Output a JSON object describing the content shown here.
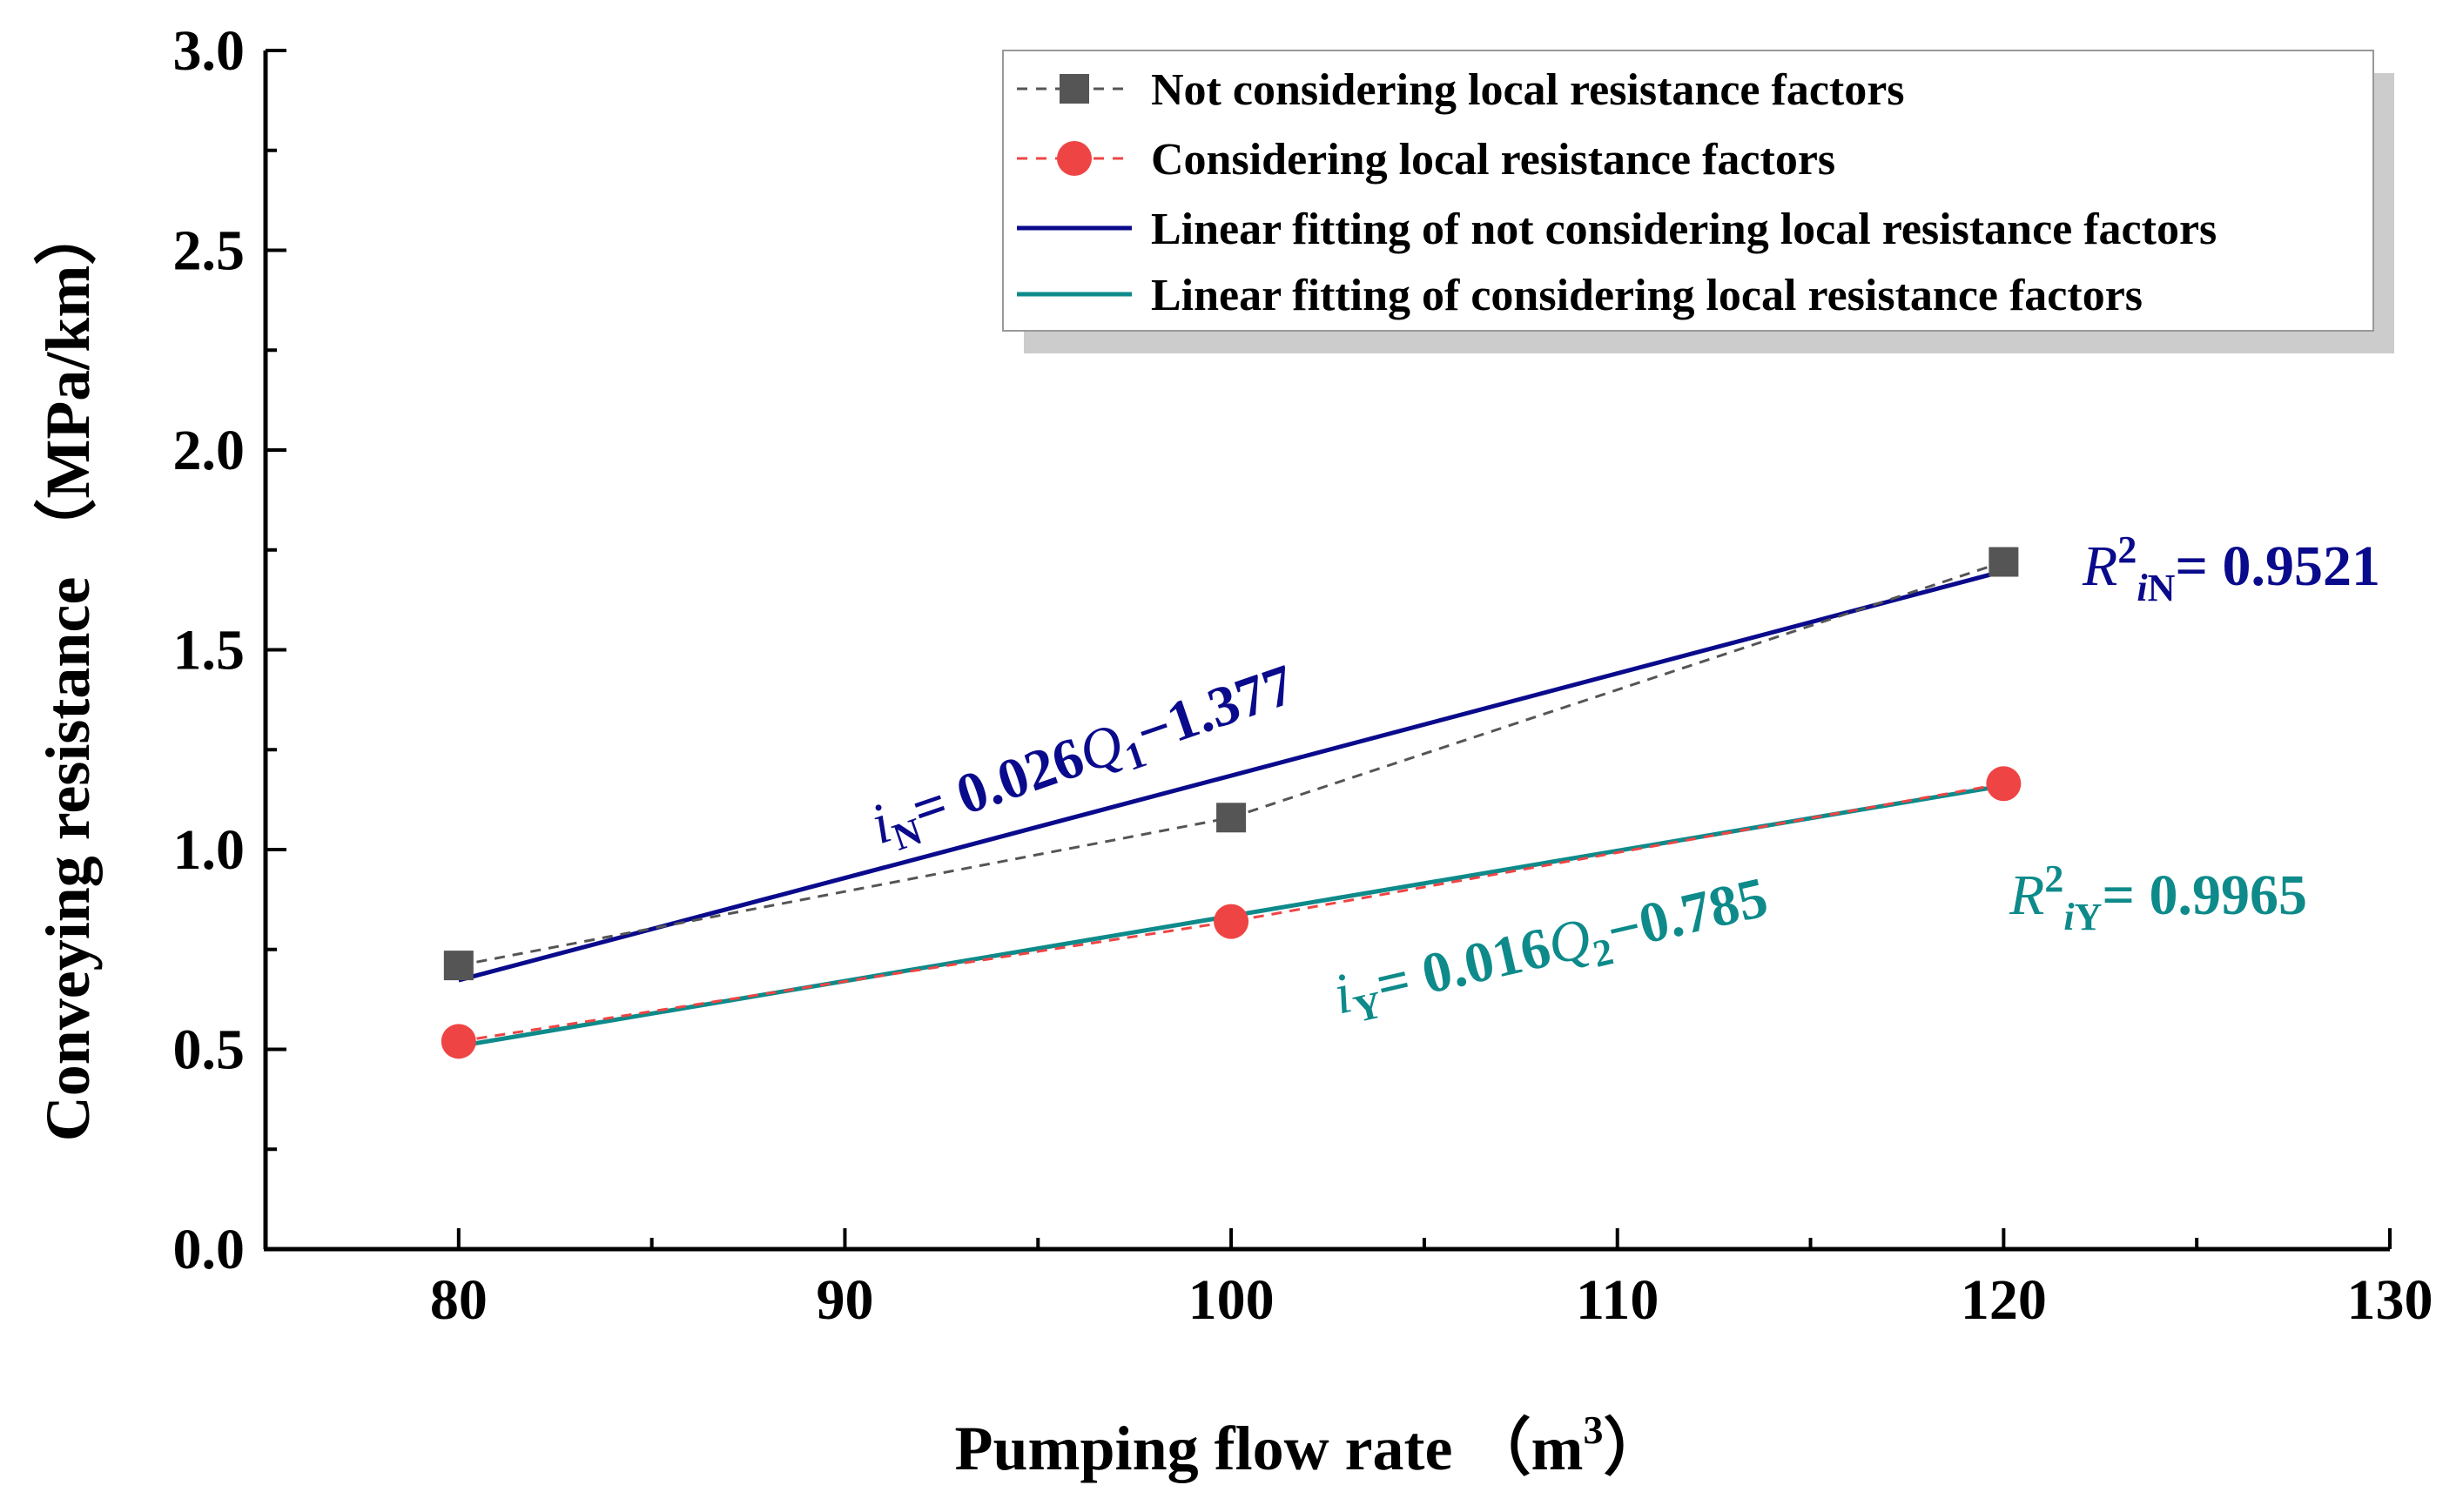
{
  "chart_data": {
    "type": "line",
    "xlabel": "Pumping flow rate",
    "xlabel_unit": "（m",
    "xlabel_unit_sup": "3",
    "xlabel_unit_close": "）",
    "ylabel": "Conveying resistance （MPa/km）",
    "xlim": [
      75,
      130
    ],
    "ylim": [
      0,
      3.0
    ],
    "x_ticks": [
      80,
      90,
      100,
      110,
      120,
      130
    ],
    "x_tick_labels": [
      "80",
      "90",
      "100",
      "110",
      "120",
      "130"
    ],
    "y_ticks": [
      0,
      0.5,
      1.0,
      1.5,
      2.0,
      2.5,
      3.0
    ],
    "y_tick_labels": [
      "0.0",
      "0.5",
      "1.0",
      "1.5",
      "2.0",
      "2.5",
      "3.0"
    ],
    "grid": false,
    "legend_position": "top-right",
    "series": [
      {
        "name": "Not considering local resistance factors",
        "style": "dashed-square",
        "color": "#555555",
        "line_color": "#555555",
        "x": [
          80,
          100,
          120
        ],
        "y": [
          0.71,
          1.08,
          1.72
        ]
      },
      {
        "name": "Considering local resistance factors",
        "style": "dashed-circle",
        "color": "#ef4444",
        "line_color": "#ef4444",
        "x": [
          80,
          100,
          120
        ],
        "y": [
          0.52,
          0.82,
          1.165
        ]
      },
      {
        "name": "Linear fitting of not considering local resistance factors",
        "style": "solid",
        "color": "#0a0a8c",
        "x": [
          80,
          120
        ],
        "y": [
          0.673,
          1.697
        ]
      },
      {
        "name": "Linear fitting of considering local resistance factors",
        "style": "solid",
        "color": "#0e8a8a",
        "x": [
          80,
          120
        ],
        "y": [
          0.508,
          1.16
        ]
      }
    ],
    "annotations": {
      "eq_n": {
        "lhs": "i",
        "lhs_sub": "N",
        "rhs": "= 0.026",
        "var": "Q",
        "var_sub": "1",
        "tail": "−1.377"
      },
      "eq_y": {
        "lhs": "i",
        "lhs_sub": "Y",
        "rhs": "= 0.016",
        "var": "Q",
        "var_sub": "2",
        "tail": "−0.785"
      },
      "r2_n": {
        "r": "R",
        "sup": "2",
        "sub_i": "i",
        "sub": "N",
        "value": "= 0.9521"
      },
      "r2_y": {
        "r": "R",
        "sup": "2",
        "sub_i": "i",
        "sub": "Y",
        "value": "= 0.9965"
      }
    }
  }
}
